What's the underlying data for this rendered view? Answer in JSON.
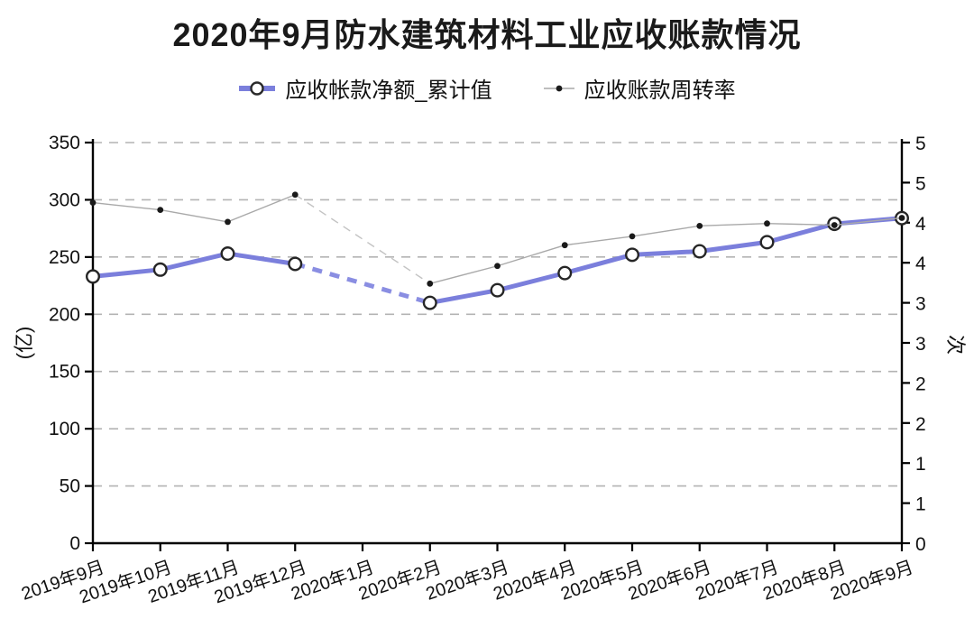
{
  "title": "2020年9月防水建筑材料工业应收账款情况",
  "legend": [
    {
      "label": "应收帐款净额_累计值",
      "line_color": "#7b7fdc",
      "marker": "open-circle",
      "marker_color": "#2a2a2a"
    },
    {
      "label": "应收账款周转率",
      "line_color": "#a9a9a9",
      "marker": "dot",
      "marker_color": "#1a1a1a"
    }
  ],
  "chart_data": {
    "type": "line",
    "categories": [
      "2019年9月",
      "2019年10月",
      "2019年11月",
      "2019年12月",
      "2020年1月",
      "2020年2月",
      "2020年3月",
      "2020年4月",
      "2020年5月",
      "2020年6月",
      "2020年7月",
      "2020年8月",
      "2020年9月"
    ],
    "series": [
      {
        "name": "应收帐款净额_累计值",
        "axis": "left",
        "values": [
          233,
          239,
          253,
          244,
          null,
          210,
          221,
          236,
          252,
          255,
          263,
          279,
          284
        ],
        "color": "#7b7fdc",
        "dash_color": "#8a8ee2",
        "line_width": 5,
        "marker": "open-circle"
      },
      {
        "name": "应收账款周转率",
        "axis": "right",
        "values": [
          4.25,
          4.16,
          4.01,
          4.35,
          null,
          3.24,
          3.46,
          3.72,
          3.83,
          3.96,
          3.99,
          3.97,
          4.06
        ],
        "color": "#a9a9a9",
        "dash_color": "#c3c3c3",
        "line_width": 1.4,
        "marker": "dot"
      }
    ],
    "left_axis": {
      "label": "(亿)",
      "min": 0,
      "max": 350,
      "tick_step": 50
    },
    "right_axis": {
      "label": "次",
      "min": 0,
      "max": 5,
      "tick_step": 0.5,
      "round_tick_labels": true
    },
    "grid": "horizontal-dashed",
    "note": "2020年1月 has no data; lines bridge the gap with dashed segments"
  }
}
